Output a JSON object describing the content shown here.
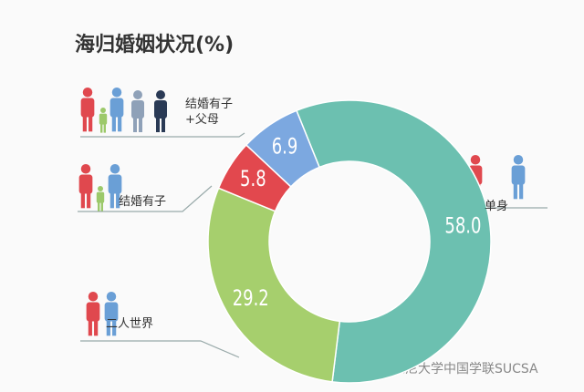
{
  "chart_data": {
    "type": "donut",
    "title": "海归婚姻状况(%)",
    "categories": [
      "单身",
      "二人世界",
      "结婚有子",
      "结婚有子+父母"
    ],
    "values": [
      58.0,
      29.2,
      5.8,
      6.9
    ],
    "value_labels": [
      "58.0",
      "29.2",
      "5.8",
      "6.9"
    ],
    "colors": [
      "#6cc0b0",
      "#a6cf6d",
      "#e2484e",
      "#7ca8e0"
    ],
    "watermark": "悉尼大学中国学联SUCSA"
  }
}
